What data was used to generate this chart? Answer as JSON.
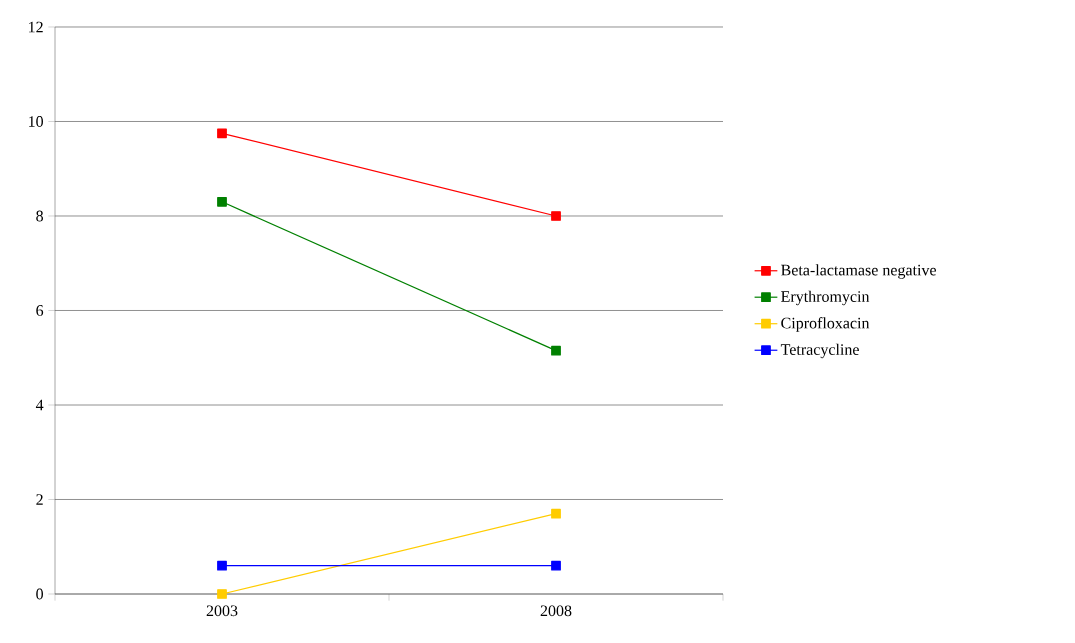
{
  "chart_data": {
    "type": "line",
    "categories": [
      "2003",
      "2008"
    ],
    "series": [
      {
        "name": "Beta-lactamase negative",
        "color": "#ff0000",
        "values": [
          9.75,
          8.0
        ]
      },
      {
        "name": "Erythromycin",
        "color": "#008000",
        "values": [
          8.3,
          5.15
        ]
      },
      {
        "name": "Ciprofloxacin",
        "color": "#ffcc00",
        "values": [
          0,
          1.7
        ]
      },
      {
        "name": "Tetracycline",
        "color": "#0000ff",
        "values": [
          0.6,
          0.6
        ]
      }
    ],
    "ylim": [
      0,
      12
    ],
    "yticks": [
      0,
      2,
      4,
      6,
      8,
      10,
      12
    ],
    "grid": "y",
    "legend": "right",
    "marker": "square",
    "line_style": "solid"
  }
}
